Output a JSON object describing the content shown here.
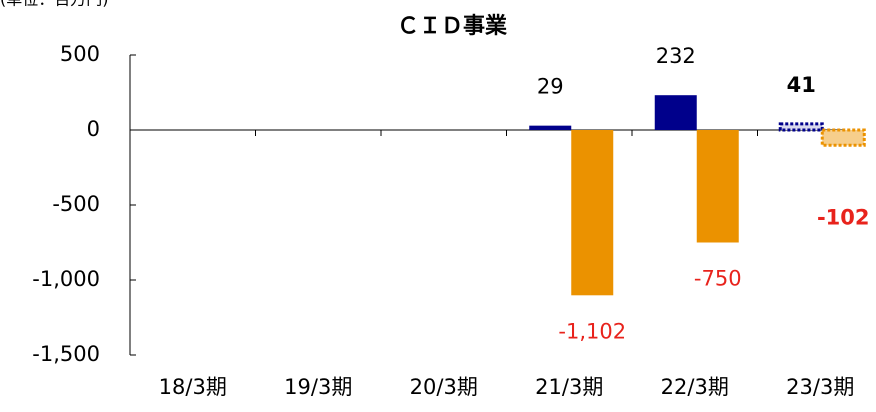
{
  "chart_data": {
    "type": "bar",
    "title": "ＣＩＤ事業",
    "unit_note": "(単位：百万円)",
    "categories": [
      "18/3期",
      "19/3期",
      "20/3期",
      "21/3期",
      "22/3期",
      "23/3期"
    ],
    "series": [
      {
        "color": "#00008b",
        "values": [
          null,
          null,
          null,
          29,
          232,
          41
        ],
        "label_color": "#000000"
      },
      {
        "color": "#eb9200",
        "values": [
          null,
          null,
          null,
          -1102,
          -750,
          -102
        ],
        "value_labels": [
          null,
          null,
          null,
          "-1,102",
          "-750",
          "-102"
        ],
        "label_color": "#e8231c"
      }
    ],
    "ylim": [
      -1500,
      500
    ],
    "yticks": [
      500,
      0,
      -500,
      {
        "value": -1000,
        "label": "-1,000"
      },
      {
        "value": -1500,
        "label": "-1,500"
      }
    ],
    "grid": false
  }
}
